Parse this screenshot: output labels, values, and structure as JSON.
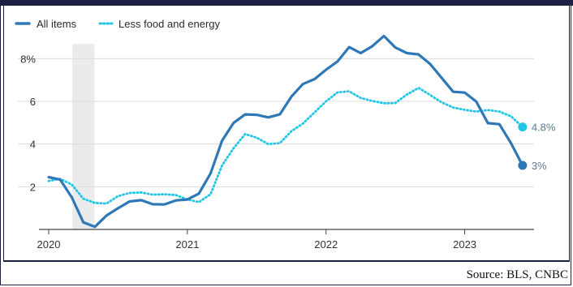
{
  "chart_data": {
    "type": "line",
    "x_ticks": [
      "2020",
      "2021",
      "2022",
      "2023"
    ],
    "y_ticks": [
      "8%",
      "6",
      "4",
      "2"
    ],
    "y_tick_values": [
      8,
      6,
      4,
      2
    ],
    "ylim": [
      0,
      9
    ],
    "xlim": [
      2020.0,
      2023.5
    ],
    "highlight_band": [
      2020.17,
      2020.33
    ],
    "series": [
      {
        "name": "All items",
        "style": "solid",
        "color": "#2f78b8",
        "end_label": "3%",
        "points": [
          [
            2020.0,
            2.45
          ],
          [
            2020.083,
            2.33
          ],
          [
            2020.167,
            1.5
          ],
          [
            2020.25,
            0.33
          ],
          [
            2020.333,
            0.12
          ],
          [
            2020.417,
            0.65
          ],
          [
            2020.5,
            0.99
          ],
          [
            2020.583,
            1.31
          ],
          [
            2020.667,
            1.37
          ],
          [
            2020.75,
            1.18
          ],
          [
            2020.833,
            1.17
          ],
          [
            2020.917,
            1.36
          ],
          [
            2021.0,
            1.4
          ],
          [
            2021.083,
            1.68
          ],
          [
            2021.167,
            2.62
          ],
          [
            2021.25,
            4.16
          ],
          [
            2021.333,
            4.99
          ],
          [
            2021.417,
            5.39
          ],
          [
            2021.5,
            5.37
          ],
          [
            2021.583,
            5.25
          ],
          [
            2021.667,
            5.39
          ],
          [
            2021.75,
            6.22
          ],
          [
            2021.833,
            6.81
          ],
          [
            2021.917,
            7.04
          ],
          [
            2022.0,
            7.48
          ],
          [
            2022.083,
            7.87
          ],
          [
            2022.167,
            8.54
          ],
          [
            2022.25,
            8.26
          ],
          [
            2022.333,
            8.58
          ],
          [
            2022.417,
            9.06
          ],
          [
            2022.5,
            8.52
          ],
          [
            2022.583,
            8.26
          ],
          [
            2022.667,
            8.2
          ],
          [
            2022.75,
            7.75
          ],
          [
            2022.833,
            7.11
          ],
          [
            2022.917,
            6.45
          ],
          [
            2023.0,
            6.41
          ],
          [
            2023.083,
            5.99
          ],
          [
            2023.167,
            4.98
          ],
          [
            2023.25,
            4.93
          ],
          [
            2023.333,
            4.05
          ],
          [
            2023.417,
            3.0
          ]
        ]
      },
      {
        "name": "Less food and energy",
        "style": "dotted",
        "color": "#22c5e6",
        "end_label": "4.8%",
        "points": [
          [
            2020.0,
            2.27
          ],
          [
            2020.083,
            2.37
          ],
          [
            2020.167,
            2.1
          ],
          [
            2020.25,
            1.44
          ],
          [
            2020.333,
            1.24
          ],
          [
            2020.417,
            1.21
          ],
          [
            2020.5,
            1.56
          ],
          [
            2020.583,
            1.71
          ],
          [
            2020.667,
            1.73
          ],
          [
            2020.75,
            1.63
          ],
          [
            2020.833,
            1.65
          ],
          [
            2020.917,
            1.61
          ],
          [
            2021.0,
            1.4
          ],
          [
            2021.083,
            1.28
          ],
          [
            2021.167,
            1.65
          ],
          [
            2021.25,
            3.0
          ],
          [
            2021.333,
            3.8
          ],
          [
            2021.417,
            4.47
          ],
          [
            2021.5,
            4.3
          ],
          [
            2021.583,
            4.0
          ],
          [
            2021.667,
            4.04
          ],
          [
            2021.75,
            4.6
          ],
          [
            2021.833,
            4.96
          ],
          [
            2021.917,
            5.48
          ],
          [
            2022.0,
            6.0
          ],
          [
            2022.083,
            6.42
          ],
          [
            2022.167,
            6.47
          ],
          [
            2022.25,
            6.16
          ],
          [
            2022.333,
            6.02
          ],
          [
            2022.417,
            5.91
          ],
          [
            2022.5,
            5.92
          ],
          [
            2022.583,
            6.32
          ],
          [
            2022.667,
            6.63
          ],
          [
            2022.75,
            6.3
          ],
          [
            2022.833,
            5.96
          ],
          [
            2022.917,
            5.71
          ],
          [
            2023.0,
            5.6
          ],
          [
            2023.083,
            5.52
          ],
          [
            2023.167,
            5.59
          ],
          [
            2023.25,
            5.52
          ],
          [
            2023.333,
            5.3
          ],
          [
            2023.417,
            4.8
          ]
        ]
      }
    ]
  },
  "footer": {
    "source": "Source: BLS, CNBC"
  }
}
